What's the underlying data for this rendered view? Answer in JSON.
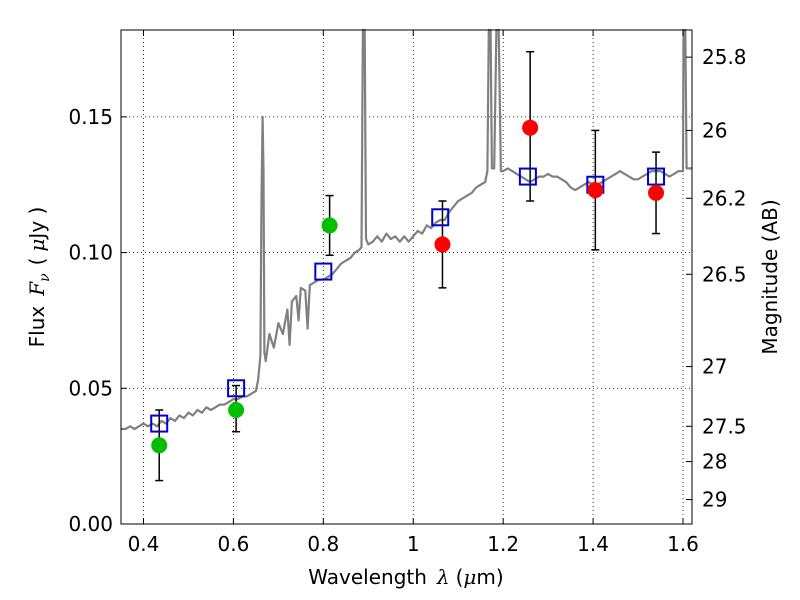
{
  "chart_data": {
    "type": "scatter",
    "xlabel_text": "Wavelength",
    "xlabel_symbol": "λ",
    "xlabel_unit_open": "(",
    "xlabel_unit_mu": "μ",
    "xlabel_unit_rest": "m)",
    "ylabel_text": "Flux",
    "ylabel_symbol": "F",
    "ylabel_sub": "ν",
    "ylabel_unit_open": "(",
    "ylabel_unit_mu": "μ",
    "ylabel_unit_rest": "Jy )",
    "y2label": "Magnitude (AB)",
    "xlim": [
      0.35,
      1.62
    ],
    "ylim": [
      0.0,
      0.182
    ],
    "grid": true,
    "x_ticks": [
      0.4,
      0.6,
      0.8,
      1.0,
      1.2,
      1.4,
      1.6
    ],
    "x_tick_labels": [
      "0.4",
      "0.6",
      "0.8",
      "1",
      "1.2",
      "1.4",
      "1.6"
    ],
    "y_ticks": [
      0.0,
      0.05,
      0.1,
      0.15
    ],
    "y_tick_labels": [
      "0.00",
      "0.05",
      "0.10",
      "0.15"
    ],
    "y2_ticks": [
      {
        "label": "25.8",
        "flux": 0.172
      },
      {
        "label": "26",
        "flux": 0.145
      },
      {
        "label": "26.2",
        "flux": 0.12
      },
      {
        "label": "26.5",
        "flux": 0.092
      },
      {
        "label": "27",
        "flux": 0.058
      },
      {
        "label": "27.5",
        "flux": 0.036
      },
      {
        "label": "28",
        "flux": 0.023
      },
      {
        "label": "29",
        "flux": 0.009
      }
    ],
    "observed_error_bars": [
      {
        "x": 0.435,
        "center": 0.029,
        "low": 0.016,
        "high": 0.042
      },
      {
        "x": 0.606,
        "center": 0.042,
        "low": 0.034,
        "high": 0.051
      },
      {
        "x": 0.814,
        "center": 0.11,
        "low": 0.099,
        "high": 0.121
      },
      {
        "x": 1.065,
        "center": 0.103,
        "low": 0.087,
        "high": 0.119
      },
      {
        "x": 1.26,
        "center": 0.146,
        "low": 0.119,
        "high": 0.174
      },
      {
        "x": 1.405,
        "center": 0.123,
        "low": 0.101,
        "high": 0.145
      },
      {
        "x": 1.54,
        "center": 0.122,
        "low": 0.107,
        "high": 0.137
      }
    ],
    "series": [
      {
        "name": "detections_optical",
        "marker": "circle",
        "color": "#00bf00",
        "points": [
          [
            0.435,
            0.029
          ],
          [
            0.606,
            0.042
          ],
          [
            0.814,
            0.11
          ]
        ]
      },
      {
        "name": "detections_nir",
        "marker": "circle",
        "color": "#ff0000",
        "points": [
          [
            1.065,
            0.103
          ],
          [
            1.26,
            0.146
          ],
          [
            1.405,
            0.123
          ],
          [
            1.54,
            0.122
          ]
        ]
      },
      {
        "name": "model_photometry",
        "marker": "square",
        "color": "#0000cc",
        "points": [
          [
            0.435,
            0.037
          ],
          [
            0.606,
            0.05
          ],
          [
            0.8,
            0.093
          ],
          [
            1.06,
            0.113
          ],
          [
            1.255,
            0.128
          ],
          [
            1.405,
            0.125
          ],
          [
            1.54,
            0.128
          ]
        ]
      },
      {
        "name": "model_spectrum",
        "type": "line",
        "color": "#808080",
        "points": [
          [
            0.35,
            0.035
          ],
          [
            0.36,
            0.035
          ],
          [
            0.37,
            0.036
          ],
          [
            0.38,
            0.035
          ],
          [
            0.39,
            0.036
          ],
          [
            0.4,
            0.037
          ],
          [
            0.41,
            0.036
          ],
          [
            0.42,
            0.037
          ],
          [
            0.43,
            0.036
          ],
          [
            0.44,
            0.038
          ],
          [
            0.45,
            0.037
          ],
          [
            0.46,
            0.039
          ],
          [
            0.47,
            0.038
          ],
          [
            0.48,
            0.04
          ],
          [
            0.49,
            0.039
          ],
          [
            0.5,
            0.041
          ],
          [
            0.51,
            0.04
          ],
          [
            0.52,
            0.042
          ],
          [
            0.53,
            0.041
          ],
          [
            0.54,
            0.043
          ],
          [
            0.55,
            0.042
          ],
          [
            0.56,
            0.043
          ],
          [
            0.57,
            0.044
          ],
          [
            0.58,
            0.044
          ],
          [
            0.59,
            0.045
          ],
          [
            0.6,
            0.046
          ],
          [
            0.61,
            0.046
          ],
          [
            0.62,
            0.047
          ],
          [
            0.63,
            0.047
          ],
          [
            0.64,
            0.048
          ],
          [
            0.65,
            0.049
          ],
          [
            0.655,
            0.053
          ],
          [
            0.66,
            0.062
          ],
          [
            0.6625,
            0.12
          ],
          [
            0.665,
            0.15
          ],
          [
            0.667,
            0.13
          ],
          [
            0.669,
            0.063
          ],
          [
            0.672,
            0.06
          ],
          [
            0.68,
            0.07
          ],
          [
            0.69,
            0.065
          ],
          [
            0.7,
            0.074
          ],
          [
            0.71,
            0.07
          ],
          [
            0.72,
            0.079
          ],
          [
            0.725,
            0.066
          ],
          [
            0.73,
            0.082
          ],
          [
            0.74,
            0.084
          ],
          [
            0.745,
            0.075
          ],
          [
            0.75,
            0.087
          ],
          [
            0.76,
            0.086
          ],
          [
            0.765,
            0.072
          ],
          [
            0.77,
            0.088
          ],
          [
            0.78,
            0.089
          ],
          [
            0.79,
            0.09
          ],
          [
            0.8,
            0.09
          ],
          [
            0.81,
            0.091
          ],
          [
            0.82,
            0.092
          ],
          [
            0.83,
            0.094
          ],
          [
            0.84,
            0.096
          ],
          [
            0.85,
            0.097
          ],
          [
            0.86,
            0.098
          ],
          [
            0.87,
            0.1
          ],
          [
            0.88,
            0.101
          ],
          [
            0.885,
            0.102
          ],
          [
            0.888,
            0.182
          ],
          [
            0.892,
            0.182
          ],
          [
            0.895,
            0.105
          ],
          [
            0.9,
            0.103
          ],
          [
            0.91,
            0.104
          ],
          [
            0.92,
            0.106
          ],
          [
            0.93,
            0.104
          ],
          [
            0.94,
            0.107
          ],
          [
            0.95,
            0.105
          ],
          [
            0.96,
            0.106
          ],
          [
            0.97,
            0.104
          ],
          [
            0.98,
            0.106
          ],
          [
            0.99,
            0.104
          ],
          [
            1.0,
            0.106
          ],
          [
            1.01,
            0.108
          ],
          [
            1.02,
            0.107
          ],
          [
            1.03,
            0.11
          ],
          [
            1.04,
            0.109
          ],
          [
            1.05,
            0.111
          ],
          [
            1.06,
            0.112
          ],
          [
            1.07,
            0.112
          ],
          [
            1.08,
            0.115
          ],
          [
            1.09,
            0.117
          ],
          [
            1.1,
            0.119
          ],
          [
            1.11,
            0.12
          ],
          [
            1.12,
            0.121
          ],
          [
            1.13,
            0.122
          ],
          [
            1.14,
            0.124
          ],
          [
            1.15,
            0.125
          ],
          [
            1.16,
            0.126
          ],
          [
            1.165,
            0.13
          ],
          [
            1.168,
            0.182
          ],
          [
            1.172,
            0.182
          ],
          [
            1.175,
            0.131
          ],
          [
            1.18,
            0.131
          ],
          [
            1.185,
            0.182
          ],
          [
            1.19,
            0.182
          ],
          [
            1.195,
            0.13
          ],
          [
            1.2,
            0.13
          ],
          [
            1.21,
            0.131
          ],
          [
            1.22,
            0.13
          ],
          [
            1.23,
            0.129
          ],
          [
            1.24,
            0.128
          ],
          [
            1.25,
            0.127
          ],
          [
            1.26,
            0.126
          ],
          [
            1.27,
            0.127
          ],
          [
            1.28,
            0.128
          ],
          [
            1.29,
            0.128
          ],
          [
            1.3,
            0.129
          ],
          [
            1.31,
            0.128
          ],
          [
            1.32,
            0.128
          ],
          [
            1.33,
            0.127
          ],
          [
            1.34,
            0.126
          ],
          [
            1.35,
            0.124
          ],
          [
            1.36,
            0.123
          ],
          [
            1.37,
            0.124
          ],
          [
            1.38,
            0.125
          ],
          [
            1.39,
            0.126
          ],
          [
            1.4,
            0.125
          ],
          [
            1.41,
            0.125
          ],
          [
            1.42,
            0.126
          ],
          [
            1.43,
            0.127
          ],
          [
            1.44,
            0.128
          ],
          [
            1.45,
            0.129
          ],
          [
            1.46,
            0.13
          ],
          [
            1.47,
            0.129
          ],
          [
            1.48,
            0.128
          ],
          [
            1.49,
            0.127
          ],
          [
            1.5,
            0.127
          ],
          [
            1.51,
            0.128
          ],
          [
            1.52,
            0.129
          ],
          [
            1.53,
            0.13
          ],
          [
            1.54,
            0.13
          ],
          [
            1.55,
            0.13
          ],
          [
            1.56,
            0.129
          ],
          [
            1.57,
            0.128
          ],
          [
            1.58,
            0.129
          ],
          [
            1.59,
            0.13
          ],
          [
            1.6,
            0.13
          ],
          [
            1.601,
            0.182
          ],
          [
            1.605,
            0.182
          ],
          [
            1.608,
            0.131
          ],
          [
            1.62,
            0.131
          ]
        ]
      }
    ]
  }
}
